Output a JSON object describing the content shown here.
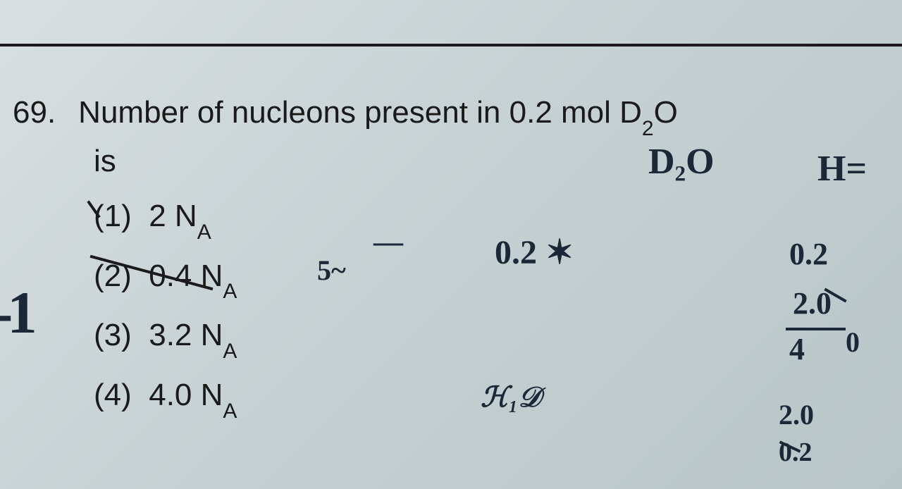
{
  "question": {
    "number": "69.",
    "text_line1": "Number of nucleons present in 0.2 mol D",
    "subscript_d2o": "2",
    "text_line1_end": "O",
    "text_line2": "is",
    "options": [
      {
        "label": "(1)",
        "value": "2 N",
        "sub": "A"
      },
      {
        "label": "(2)",
        "value": "0.4 N",
        "sub": "A"
      },
      {
        "label": "(3)",
        "value": "3.2 N",
        "sub": "A"
      },
      {
        "label": "(4)",
        "value": "4.0 N",
        "sub": "A"
      }
    ]
  },
  "handwritten": {
    "d2o": "D₂O",
    "h_equals": "H=",
    "zero_two_x": "0.2 ✶",
    "dash": "—",
    "five_squiggle": "5~",
    "zero_two": "0.2",
    "two_zero": "2.0",
    "four": "4",
    "zero_r": "0",
    "two_bottom": "2.0",
    "zero_bottom": "0.2",
    "scribble": "ℋ₁𝒟",
    "minus_one": "-1"
  }
}
